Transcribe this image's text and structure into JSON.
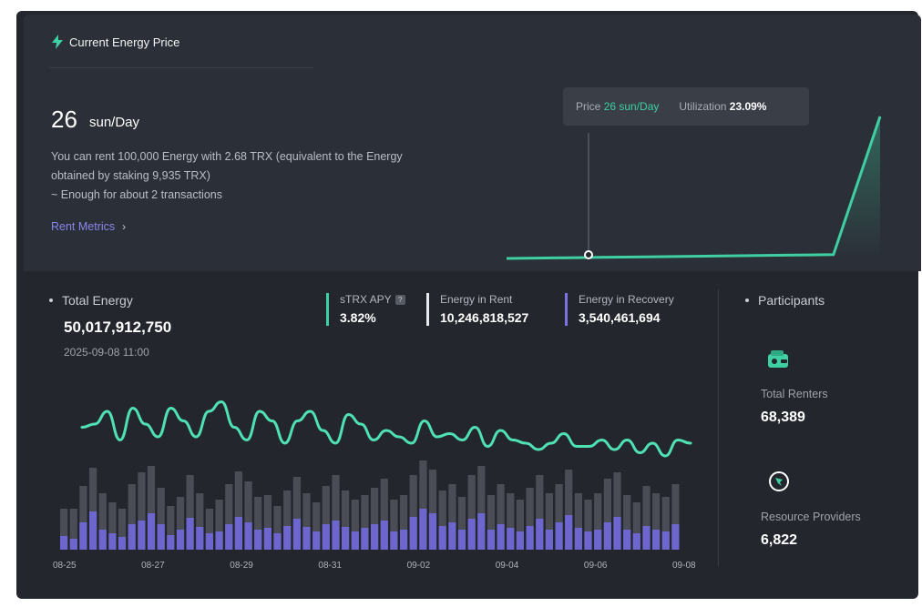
{
  "price_card": {
    "title": "Current Energy Price",
    "price_value": "26",
    "price_unit": "sun/Day",
    "description_line1": "You can rent 100,000 Energy with 2.68 TRX (equivalent to the Energy",
    "description_line2": "obtained by staking 9,935 TRX)",
    "description_line3": "~ Enough for about 2 transactions",
    "rent_metrics_link": "Rent Metrics",
    "chevron": "›",
    "tooltip": {
      "price_label": "Price",
      "price_value": "26 sun/Day",
      "utilization_label": "Utilization",
      "utilization_value": "23.09%"
    }
  },
  "total_energy": {
    "label": "Total Energy",
    "value": "50,017,912,750",
    "date": "2025-09-08 11:00"
  },
  "stats": [
    {
      "label": "sTRX APY",
      "value": "3.82%",
      "color": "#3ecfa3",
      "has_help": true,
      "help_glyph": "?"
    },
    {
      "label": "Energy in Rent",
      "value": "10,246,818,527",
      "color": "#e8eaee",
      "has_help": false
    },
    {
      "label": "Energy in Recovery",
      "value": "3,540,461,694",
      "color": "#7b72e0",
      "has_help": false
    }
  ],
  "participants": {
    "label": "Participants",
    "total_renters_label": "Total Renters",
    "total_renters_value": "68,389",
    "providers_label": "Resource Providers",
    "providers_value": "6,822"
  },
  "chart_data": {
    "type": "bar",
    "x_ticks": [
      "08-25",
      "08-27",
      "08-29",
      "08-31",
      "09-02",
      "09-04",
      "09-06",
      "09-08"
    ],
    "bar_count": 64,
    "total_bars": [
      0.45,
      0.45,
      0.7,
      0.9,
      0.62,
      0.52,
      0.45,
      0.72,
      0.85,
      0.92,
      0.68,
      0.48,
      0.58,
      0.82,
      0.62,
      0.45,
      0.55,
      0.72,
      0.86,
      0.75,
      0.58,
      0.6,
      0.48,
      0.65,
      0.8,
      0.62,
      0.52,
      0.7,
      0.82,
      0.65,
      0.55,
      0.6,
      0.68,
      0.78,
      0.55,
      0.6,
      0.82,
      0.98,
      0.88,
      0.65,
      0.72,
      0.58,
      0.82,
      0.92,
      0.6,
      0.72,
      0.62,
      0.55,
      0.68,
      0.82,
      0.62,
      0.72,
      0.88,
      0.62,
      0.55,
      0.62,
      0.78,
      0.85,
      0.6,
      0.52,
      0.7,
      0.62,
      0.58,
      0.72
    ],
    "recovery_bars": [
      0.15,
      0.12,
      0.3,
      0.42,
      0.22,
      0.18,
      0.14,
      0.28,
      0.32,
      0.4,
      0.28,
      0.16,
      0.22,
      0.35,
      0.25,
      0.18,
      0.2,
      0.28,
      0.36,
      0.3,
      0.22,
      0.24,
      0.18,
      0.26,
      0.34,
      0.25,
      0.2,
      0.28,
      0.32,
      0.25,
      0.2,
      0.24,
      0.28,
      0.32,
      0.2,
      0.22,
      0.36,
      0.45,
      0.4,
      0.26,
      0.3,
      0.22,
      0.34,
      0.4,
      0.22,
      0.28,
      0.24,
      0.2,
      0.26,
      0.34,
      0.22,
      0.3,
      0.38,
      0.24,
      0.2,
      0.22,
      0.3,
      0.36,
      0.22,
      0.18,
      0.26,
      0.22,
      0.2,
      0.28
    ],
    "line_series": [
      0.55,
      0.6,
      0.8,
      0.35,
      0.85,
      0.6,
      0.4,
      0.85,
      0.65,
      0.4,
      0.8,
      0.95,
      0.55,
      0.35,
      0.8,
      0.65,
      0.3,
      0.65,
      0.8,
      0.5,
      0.3,
      0.75,
      0.6,
      0.35,
      0.5,
      0.4,
      0.3,
      0.65,
      0.4,
      0.45,
      0.35,
      0.55,
      0.25,
      0.5,
      0.35,
      0.3,
      0.2,
      0.3,
      0.45,
      0.25,
      0.25,
      0.35,
      0.2,
      0.35,
      0.15,
      0.3,
      0.1,
      0.35,
      0.3
    ],
    "colors": {
      "line": "#4fe0b4",
      "bar_total": "#4a4d55",
      "bar_recovery": "#6e66cf"
    }
  },
  "price_chart_data": {
    "type": "line",
    "values": [
      26,
      26,
      26,
      26,
      26,
      26,
      26,
      26,
      120
    ],
    "color": "#3ecfa3"
  }
}
